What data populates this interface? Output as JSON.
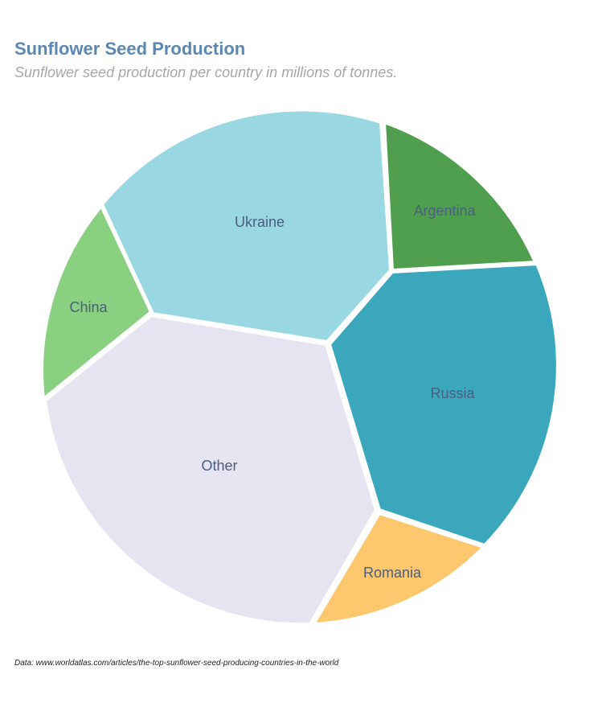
{
  "chart_data": {
    "type": "voronoi-pie",
    "title": "Sunflower Seed Production",
    "subtitle": "Sunflower seed production per country in millions of tonnes.",
    "source": "Data: www.worldatlas.com/articles/the-top-sunflower-seed-producing-countries-in-the-world",
    "categories": [
      "Ukraine",
      "Argentina",
      "Russia",
      "Romania",
      "Other",
      "China"
    ],
    "values": [
      11.2,
      3.0,
      9.0,
      2.0,
      11.0,
      2.5
    ],
    "colors": [
      "#99d8e2",
      "#4f9f4f",
      "#3ba7bc",
      "#fcc76d",
      "#e6e4f0",
      "#89d180"
    ],
    "label_color": "#4a5f7e",
    "title_color": "#5b87b3",
    "subtitle_color": "#a7a7a7"
  }
}
